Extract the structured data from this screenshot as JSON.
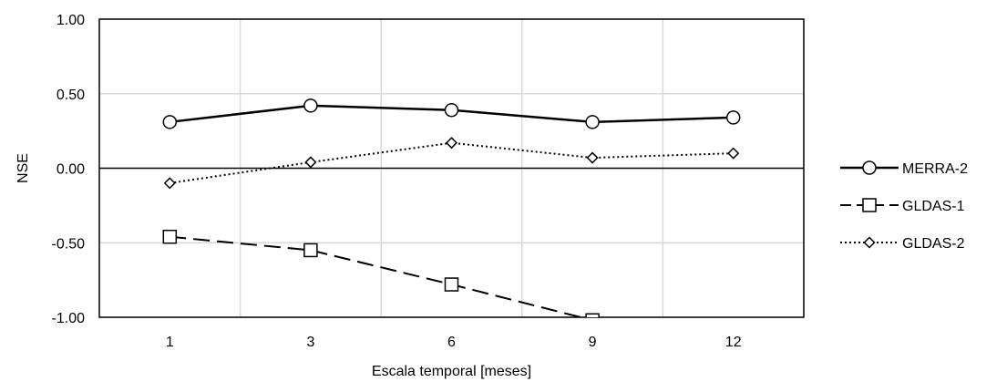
{
  "chart_data": {
    "type": "line",
    "title": "",
    "xlabel": "Escala temporal [meses]",
    "ylabel": "NSE",
    "categories": [
      "1",
      "3",
      "6",
      "9",
      "12"
    ],
    "ylim": [
      -1.0,
      1.0
    ],
    "yticks": [
      1.0,
      0.5,
      0.0,
      -0.5,
      -1.0
    ],
    "ytick_labels": [
      "1.00",
      "0.50",
      "0.00",
      "-0.50",
      "-1.00"
    ],
    "grid": true,
    "legend_position": "right",
    "series": [
      {
        "name": "MERRA-2",
        "values": [
          0.31,
          0.42,
          0.39,
          0.31,
          0.34
        ],
        "marker": "circle",
        "line": "solid",
        "color": "#000000"
      },
      {
        "name": "GLDAS-1",
        "values": [
          -0.46,
          -0.55,
          -0.78,
          -1.02,
          null
        ],
        "marker": "square",
        "line": "dashed",
        "color": "#000000"
      },
      {
        "name": "GLDAS-2",
        "values": [
          -0.1,
          0.04,
          0.17,
          0.07,
          0.1
        ],
        "marker": "diamond",
        "line": "dotted",
        "color": "#000000"
      }
    ]
  }
}
